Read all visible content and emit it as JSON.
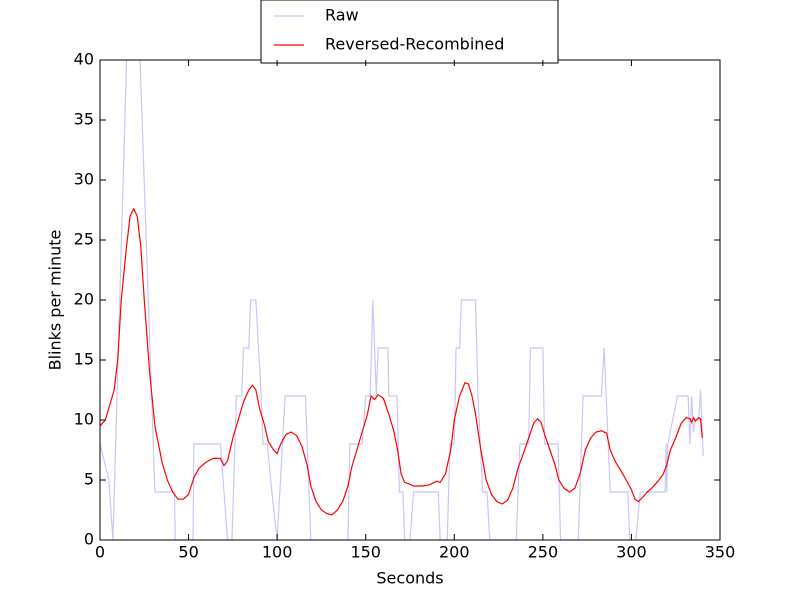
{
  "chart_data": {
    "type": "line",
    "xlabel": "Seconds",
    "ylabel": "Blinks per minute",
    "xlim": [
      0,
      350
    ],
    "ylim": [
      0,
      40
    ],
    "xticks": [
      0,
      50,
      100,
      150,
      200,
      250,
      300,
      350
    ],
    "yticks": [
      0,
      5,
      10,
      15,
      20,
      25,
      30,
      35,
      40
    ],
    "legend": "upper center outside",
    "series": [
      {
        "name": "Raw",
        "color": "#c8c8f8",
        "x": [
          0,
          5,
          7.3,
          15,
          22.6,
          31,
          42,
          42.5,
          52.5,
          53,
          68,
          72,
          74.5,
          77,
          80,
          81,
          84,
          85,
          88,
          91,
          92,
          94.5,
          97,
          100,
          104.5,
          116,
          119,
          140,
          141,
          148,
          150,
          152.5,
          154,
          156,
          157,
          162.6,
          163,
          167.7,
          169,
          171,
          172,
          175,
          177,
          191,
          192,
          196,
          197.6,
          200,
          201,
          203,
          204,
          212,
          213.4,
          216,
          218.5,
          220,
          235,
          237,
          242,
          243,
          250,
          251,
          258.6,
          260,
          270,
          272.7,
          283,
          284.6,
          288,
          298,
          299,
          302.5,
          305,
          319,
          319.5,
          320,
          320.5,
          326,
          332,
          333,
          334,
          335,
          336,
          338,
          339,
          340.5
        ],
        "values": [
          8,
          5,
          0,
          40,
          40,
          4,
          4,
          0,
          0,
          8,
          8,
          0,
          0,
          12,
          12,
          16,
          16,
          20,
          20,
          12,
          8,
          8,
          4,
          0,
          12,
          12,
          0,
          0,
          8,
          8,
          12,
          12,
          20,
          12,
          16,
          16,
          12,
          12,
          4,
          4,
          0,
          0,
          4,
          4,
          0,
          0,
          8,
          8,
          16,
          16,
          20,
          20,
          12,
          4,
          4,
          0,
          0,
          8,
          8,
          16,
          16,
          8,
          8,
          0,
          0,
          12,
          12,
          16,
          4,
          4,
          0,
          0,
          4,
          4,
          8,
          4,
          8,
          12,
          12,
          8,
          12,
          9,
          10,
          10,
          12.5,
          7
        ]
      },
      {
        "name": "Reversed-Recombined",
        "color": "#ff0000",
        "x": [
          0,
          3,
          6,
          8,
          10,
          12,
          15,
          17,
          19,
          21,
          23,
          25,
          28,
          31,
          35,
          38,
          41,
          44,
          47,
          50,
          53,
          56,
          60,
          64,
          68,
          70,
          72,
          75,
          78,
          81,
          84,
          86,
          88,
          90,
          93,
          95,
          98,
          100,
          102,
          105,
          108,
          111,
          114,
          117,
          119,
          122,
          125,
          128,
          131,
          134,
          137,
          140,
          142,
          145,
          148,
          151,
          153,
          155,
          157,
          160,
          163,
          166,
          168,
          170,
          172,
          174,
          177,
          182,
          186,
          190,
          192,
          195,
          198,
          200,
          203,
          206,
          208,
          210,
          212,
          215,
          218,
          221,
          224,
          227,
          230,
          233,
          236,
          239,
          242,
          245,
          247,
          249,
          251,
          254,
          257,
          259,
          262,
          265,
          268,
          271,
          274,
          277,
          280,
          283,
          286,
          288,
          291,
          294,
          297,
          300,
          302,
          304,
          306,
          309,
          312,
          315,
          318,
          320,
          322,
          325,
          328,
          331,
          333,
          334,
          335,
          336,
          338,
          339,
          340
        ],
        "values": [
          9.5,
          10,
          11.5,
          12.5,
          15,
          20,
          24.5,
          27,
          27.6,
          27,
          24.5,
          20,
          14,
          9.5,
          6.5,
          5,
          4,
          3.4,
          3.4,
          3.8,
          5.2,
          6,
          6.5,
          6.8,
          6.8,
          6.2,
          6.6,
          8.5,
          10,
          11.5,
          12.5,
          12.9,
          12.5,
          11,
          9.5,
          8.2,
          7.5,
          7.2,
          8,
          8.8,
          9,
          8.7,
          7.8,
          6.2,
          4.5,
          3.2,
          2.5,
          2.2,
          2.1,
          2.5,
          3.2,
          4.5,
          6,
          7.5,
          9,
          10.5,
          12,
          11.7,
          12.1,
          11.8,
          10.5,
          9,
          7.5,
          5.5,
          4.8,
          4.7,
          4.5,
          4.5,
          4.6,
          4.9,
          4.8,
          5.5,
          7.5,
          10,
          12,
          13.1,
          13,
          12,
          10.5,
          7.5,
          5,
          3.8,
          3.2,
          3,
          3.3,
          4.3,
          6,
          7.2,
          8.5,
          9.8,
          10.1,
          9.8,
          8.8,
          7.5,
          6.2,
          5,
          4.3,
          4,
          4.3,
          5.5,
          7.5,
          8.5,
          9,
          9.1,
          8.9,
          7.5,
          6.5,
          5.8,
          5,
          4.2,
          3.4,
          3.2,
          3.5,
          4,
          4.4,
          4.9,
          5.5,
          6.3,
          7.5,
          8.5,
          9.7,
          10.2,
          10.1,
          9.8,
          10.2,
          9.9,
          10.2,
          10.1,
          8.5
        ]
      }
    ]
  }
}
